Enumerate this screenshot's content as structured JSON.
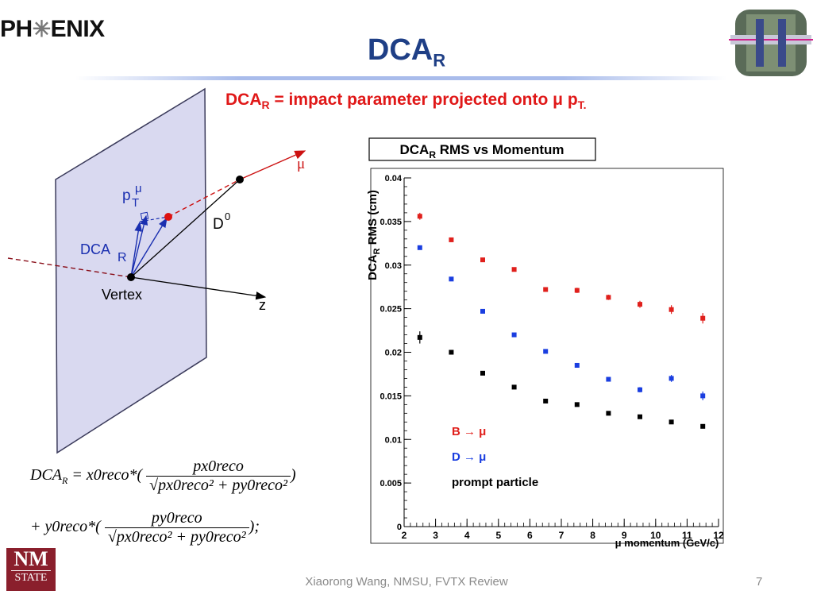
{
  "header": {
    "logo_left": "PH",
    "logo_right": "ENIX",
    "title_main": "DCA",
    "title_sub": "R"
  },
  "subtitle": {
    "main": "DCA",
    "sub": "R",
    "rest": " = impact parameter projected onto μ p",
    "rest_sub": "T."
  },
  "diagram": {
    "labels": {
      "mu": "μ",
      "pt_main": "p",
      "pt_sub": "T",
      "pt_sup": "μ",
      "d0_main": "D",
      "d0_sup": "0",
      "dca_main": "DCA",
      "dca_sub": "R",
      "vertex": "Vertex",
      "z": "z"
    },
    "colors": {
      "plane": "#d9d9f0",
      "mu_arrow": "#cc1111",
      "dca_arrow": "#1a2fb0"
    }
  },
  "formula": {
    "lhs": "DCA",
    "lhs_sub": "R",
    "term1": " = x0reco*(",
    "num1": "px0reco",
    "den1": "px0reco² + py0reco²",
    "close1": ")",
    "term2": "+ y0reco*(",
    "num2": "py0reco",
    "den2": "px0reco² + py0reco²",
    "close2": ");"
  },
  "chart_data": {
    "type": "scatter",
    "title": "DCA_R RMS vs Momentum",
    "title_main": "DCA",
    "title_sub": "R",
    "title_rest": " RMS vs Momentum",
    "xlabel": "μ momentum (GeV/c)",
    "ylabel": "DCA_R RMS (cm)",
    "xlim": [
      2,
      12
    ],
    "ylim": [
      0,
      0.04
    ],
    "x_ticks": [
      2,
      3,
      4,
      5,
      6,
      7,
      8,
      9,
      10,
      11,
      12
    ],
    "y_ticks": [
      "0",
      "0.005",
      "0.01",
      "0.015",
      "0.02",
      "0.025",
      "0.03",
      "0.035",
      "0.04"
    ],
    "legend_position": "bottom-left",
    "series": [
      {
        "name": "B → μ",
        "color": "#e0201c",
        "x": [
          2.5,
          3.5,
          4.5,
          5.5,
          6.5,
          7.5,
          8.5,
          9.5,
          10.5,
          11.5
        ],
        "y": [
          0.0356,
          0.0329,
          0.0306,
          0.0295,
          0.0272,
          0.0271,
          0.0263,
          0.0255,
          0.0249,
          0.0239
        ],
        "err": [
          0.0004,
          0.0001,
          0.0001,
          0.0001,
          0.0002,
          0.0003,
          0.0003,
          0.0004,
          0.0005,
          0.0006
        ]
      },
      {
        "name": "D → μ",
        "color": "#1a3ee0",
        "x": [
          2.5,
          3.5,
          4.5,
          5.5,
          6.5,
          7.5,
          8.5,
          9.5,
          10.5,
          11.5
        ],
        "y": [
          0.032,
          0.0284,
          0.0247,
          0.022,
          0.0201,
          0.0185,
          0.0169,
          0.0157,
          0.017,
          0.015
        ],
        "err": [
          0.0002,
          0.0001,
          0.0001,
          0.0001,
          0.0001,
          0.0002,
          0.0002,
          0.0003,
          0.0004,
          0.0005
        ]
      },
      {
        "name": "prompt particle",
        "color": "#000000",
        "x": [
          2.5,
          3.5,
          4.5,
          5.5,
          6.5,
          7.5,
          8.5,
          9.5,
          10.5,
          11.5
        ],
        "y": [
          0.0217,
          0.02,
          0.0176,
          0.016,
          0.0144,
          0.014,
          0.013,
          0.0126,
          0.012,
          0.0115
        ],
        "err": [
          0.0007,
          0.0002,
          0.0001,
          0.0001,
          0.0001,
          0.0001,
          0.0001,
          0.0001,
          0.0001,
          0.0001
        ]
      }
    ]
  },
  "footer": {
    "text": "Xiaorong Wang, NMSU, FVTX Review",
    "page": "7",
    "logo_top": "NM",
    "logo_bottom": "STATE"
  }
}
